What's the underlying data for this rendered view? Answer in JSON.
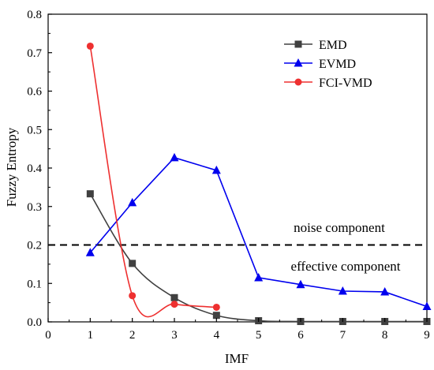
{
  "chart_data": {
    "type": "line",
    "xlabel": "IMF",
    "ylabel": "Fuzzy Entropy",
    "xlim": [
      0,
      9
    ],
    "ylim": [
      0,
      0.8
    ],
    "x_ticks": [
      "0",
      "1",
      "2",
      "3",
      "4",
      "5",
      "6",
      "7",
      "8",
      "9"
    ],
    "y_ticks": [
      "0.0",
      "0.1",
      "0.2",
      "0.3",
      "0.4",
      "0.5",
      "0.6",
      "0.7",
      "0.8"
    ],
    "grid": false,
    "legend_position": "top-right",
    "series": [
      {
        "name": "EMD",
        "color": "#404040",
        "marker": "square",
        "smooth": true,
        "x": [
          1,
          2,
          3,
          4,
          5,
          6,
          7,
          8,
          9
        ],
        "y": [
          0.333,
          0.152,
          0.063,
          0.017,
          0.003,
          0.001,
          0.001,
          0.001,
          0.001
        ]
      },
      {
        "name": "EVMD",
        "color": "#0000ee",
        "marker": "triangle",
        "smooth": false,
        "x": [
          1,
          2,
          3,
          4,
          5,
          6,
          7,
          8,
          9
        ],
        "y": [
          0.18,
          0.31,
          0.427,
          0.394,
          0.115,
          0.097,
          0.08,
          0.078,
          0.04
        ]
      },
      {
        "name": "FCI-VMD",
        "color": "#ee3030",
        "marker": "circle",
        "smooth": true,
        "x": [
          1,
          2,
          3,
          4
        ],
        "y": [
          0.717,
          0.068,
          0.046,
          0.038
        ]
      }
    ],
    "threshold": {
      "y": 0.2,
      "style": "dashed",
      "color": "#000000"
    },
    "annotations": {
      "above": "noise component",
      "below": "effective component"
    }
  }
}
